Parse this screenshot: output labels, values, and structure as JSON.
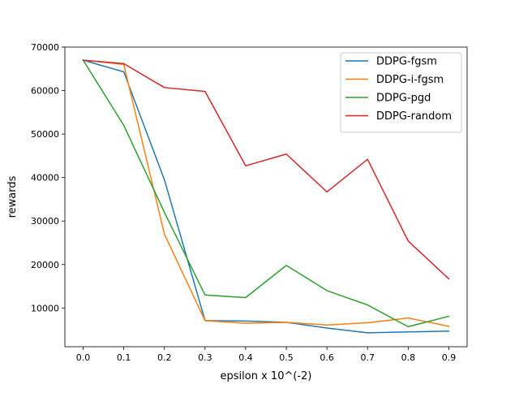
{
  "chart_data": {
    "type": "line",
    "title": "",
    "xlabel": "epsilon x 10^(-2)",
    "ylabel": "rewards",
    "x": [
      0.0,
      0.1,
      0.2,
      0.3,
      0.4,
      0.5,
      0.6,
      0.7,
      0.8,
      0.9
    ],
    "x_tick_labels": [
      "0.0",
      "0.1",
      "0.2",
      "0.3",
      "0.4",
      "0.5",
      "0.6",
      "0.7",
      "0.8",
      "0.9"
    ],
    "xlim": [
      -0.045,
      0.945
    ],
    "ylim": [
      1100,
      70000
    ],
    "y_ticks": [
      10000,
      20000,
      30000,
      40000,
      50000,
      60000,
      70000
    ],
    "y_tick_labels": [
      "10000",
      "20000",
      "30000",
      "40000",
      "50000",
      "60000",
      "70000"
    ],
    "grid": false,
    "legend_position": "top-right",
    "series": [
      {
        "name": "DDPG-fgsm",
        "color": "#1f77b4",
        "values": [
          67000,
          64300,
          39500,
          7100,
          7000,
          6700,
          5400,
          4300,
          4500,
          4700
        ]
      },
      {
        "name": "DDPG-i-fgsm",
        "color": "#ff7f0e",
        "values": [
          67000,
          66000,
          27000,
          7100,
          6500,
          6700,
          6100,
          6600,
          7700,
          5800
        ]
      },
      {
        "name": "DDPG-pgd",
        "color": "#2ca02c",
        "values": [
          67000,
          52000,
          32000,
          13000,
          12400,
          19800,
          14000,
          10700,
          5700,
          8100
        ]
      },
      {
        "name": "DDPG-random",
        "color": "#d62728",
        "values": [
          67000,
          66200,
          60700,
          59800,
          42700,
          45400,
          36700,
          44200,
          25400,
          16700
        ]
      }
    ]
  }
}
